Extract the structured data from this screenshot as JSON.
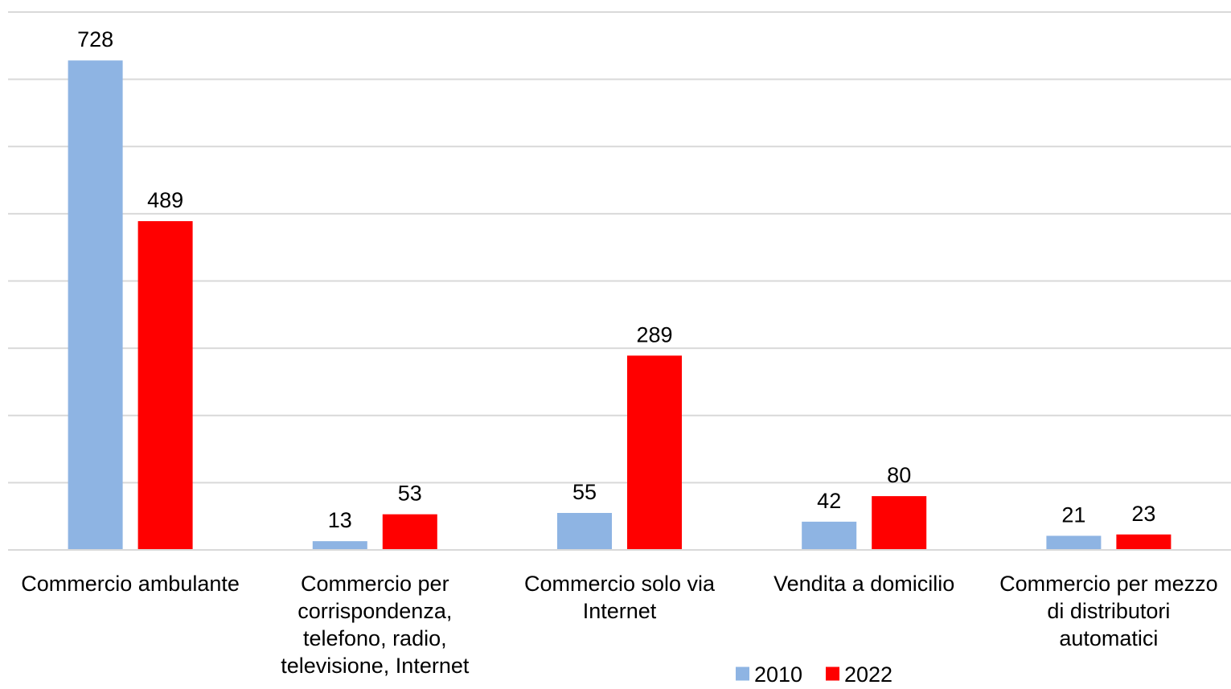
{
  "chart_data": {
    "type": "bar",
    "title": "",
    "xlabel": "",
    "ylabel": "",
    "ylim": [
      0,
      800
    ],
    "grid": true,
    "y_tick_labels_visible": false,
    "legend_position": "bottom",
    "categories": [
      "Commercio ambulante",
      "Commercio per corrispondenza, telefono, radio, televisione, Internet",
      "Commercio solo via Internet",
      "Vendita a domicilio",
      "Commercio per mezzo di distributori automatici"
    ],
    "category_lines": [
      [
        "Commercio ambulante"
      ],
      [
        "Commercio per",
        "corrispondenza,",
        "telefono, radio,",
        "televisione, Internet"
      ],
      [
        "Commercio solo via",
        "Internet"
      ],
      [
        "Vendita a domicilio"
      ],
      [
        "Commercio per mezzo",
        "di distributori",
        "automatici"
      ]
    ],
    "series": [
      {
        "name": "2010",
        "color": "#8EB4E3",
        "values": [
          728,
          13,
          55,
          42,
          21
        ]
      },
      {
        "name": "2022",
        "color": "#FF0000",
        "values": [
          489,
          53,
          289,
          80,
          23
        ]
      }
    ],
    "gridline_color": "#D9D9D9",
    "axis_color": "#D9D9D9"
  }
}
